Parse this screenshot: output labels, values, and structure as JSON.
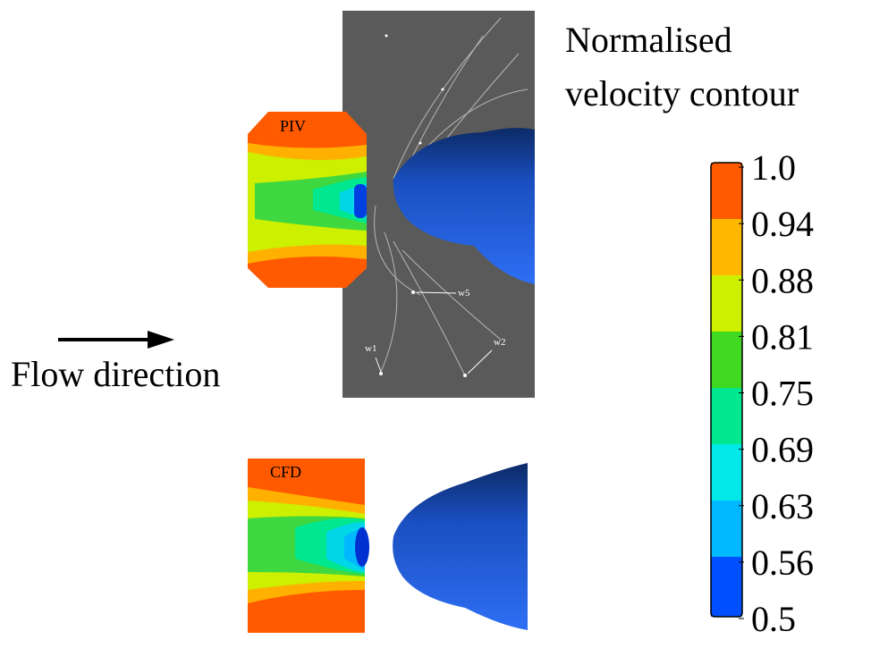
{
  "title": {
    "lines": [
      "Normalised",
      "velocity contour"
    ]
  },
  "colorbar": {
    "labels": [
      "1.0",
      "0.94",
      "0.88",
      "0.81",
      "0.75",
      "0.69",
      "0.63",
      "0.56",
      "0.5"
    ]
  },
  "panels": {
    "piv": "PIV",
    "cfd": "CFD"
  },
  "markers": {
    "w1": "w1",
    "w2": "w2",
    "w5": "w5"
  },
  "flow": "Flow direction"
}
